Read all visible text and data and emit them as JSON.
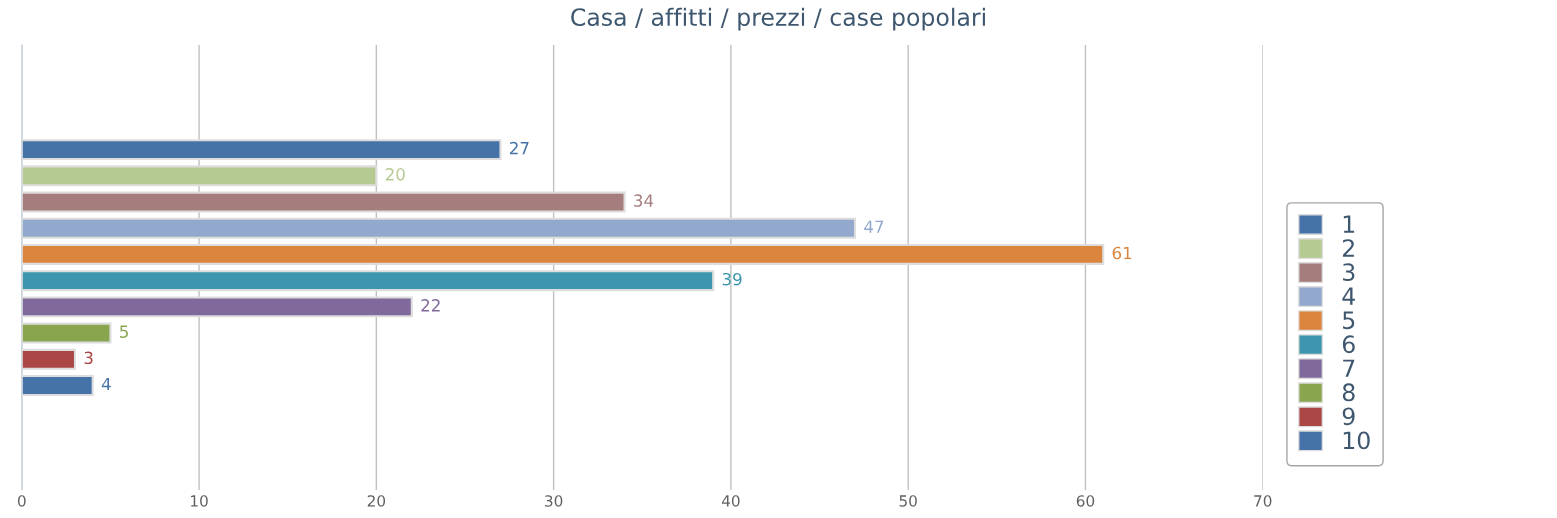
{
  "chart_data": {
    "type": "bar",
    "orientation": "horizontal",
    "title": "Casa / affitti / prezzi / case popolari",
    "categories": [
      null
    ],
    "series": [
      {
        "name": "1",
        "color": "#4572a7",
        "values": [
          27
        ]
      },
      {
        "name": "2",
        "color": "#b5ca92",
        "values": [
          20
        ]
      },
      {
        "name": "3",
        "color": "#a47d7c",
        "values": [
          34
        ]
      },
      {
        "name": "4",
        "color": "#92a8cd",
        "values": [
          47
        ]
      },
      {
        "name": "5",
        "color": "#db843d",
        "values": [
          61
        ]
      },
      {
        "name": "6",
        "color": "#3d96ae",
        "values": [
          39
        ]
      },
      {
        "name": "7",
        "color": "#80699b",
        "values": [
          22
        ]
      },
      {
        "name": "8",
        "color": "#89a54e",
        "values": [
          5
        ]
      },
      {
        "name": "9",
        "color": "#aa4643",
        "values": [
          3
        ]
      },
      {
        "name": "10",
        "color": "#4572a7",
        "values": [
          4
        ]
      }
    ],
    "xlim": [
      0,
      70
    ],
    "xticks": [
      0,
      10,
      20,
      30,
      40,
      50,
      60,
      70
    ],
    "grid": "x",
    "legend": "right",
    "data_labels": true
  }
}
